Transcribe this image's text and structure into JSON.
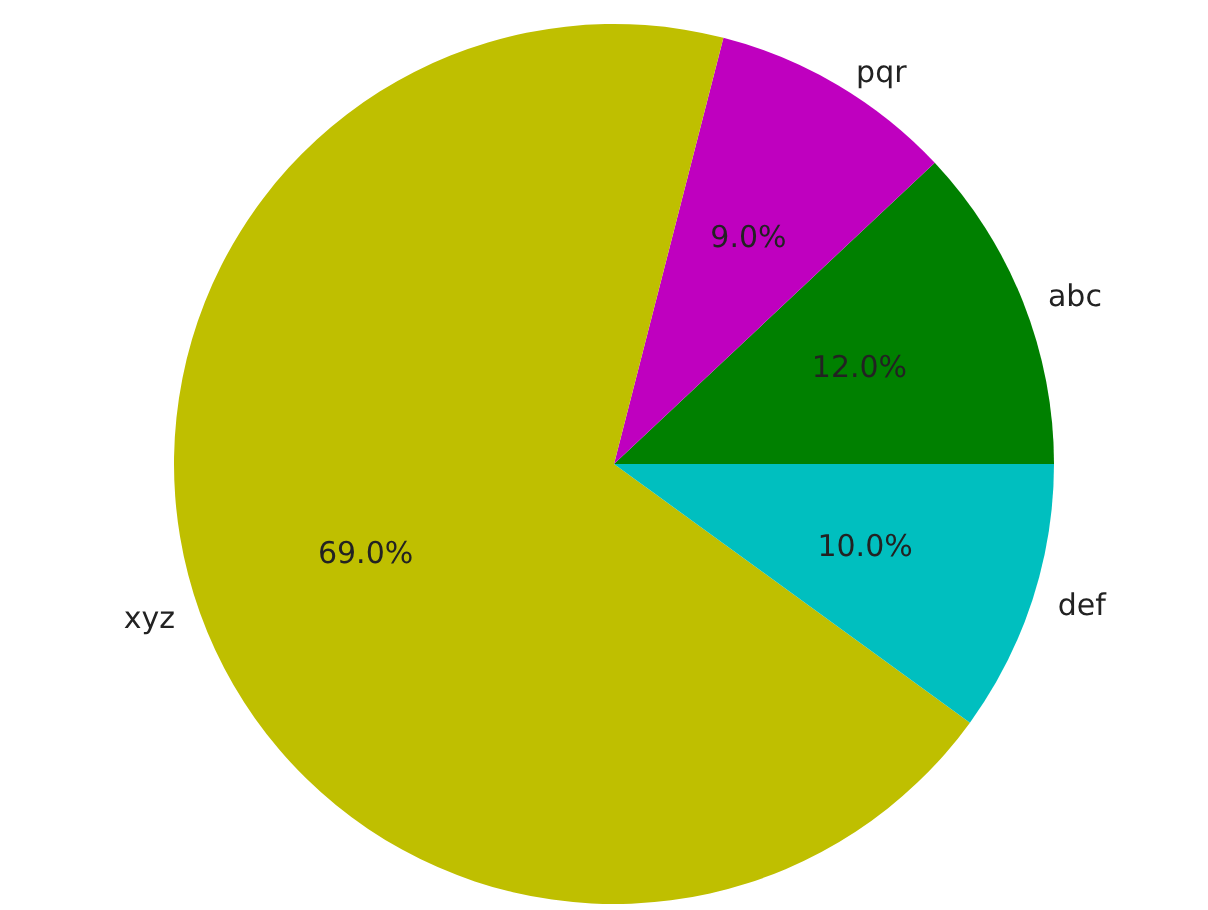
{
  "chart_data": {
    "type": "pie",
    "categories": [
      "abc",
      "pqr",
      "xyz",
      "def"
    ],
    "values": [
      12,
      9,
      69,
      10
    ],
    "colors": [
      "#008000",
      "#bf00bf",
      "#bfbf00",
      "#00bfbf"
    ],
    "value_labels": [
      "12.0%",
      "9.0%",
      "69.0%",
      "10.0%"
    ],
    "legend": false
  }
}
